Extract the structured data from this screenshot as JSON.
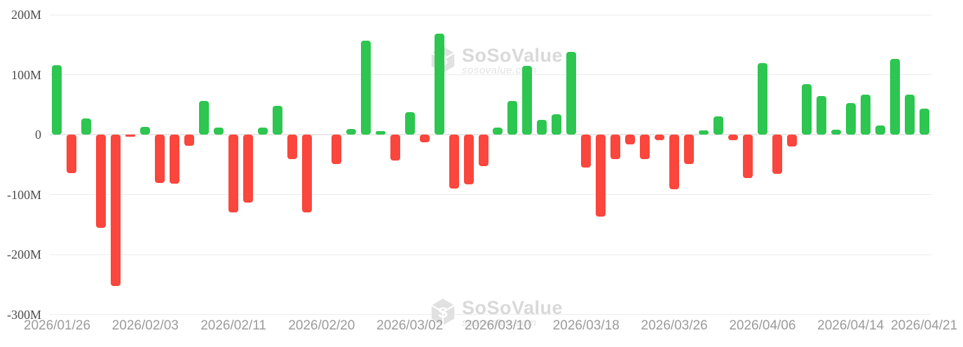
{
  "watermark": {
    "brand": "SoSoValue",
    "domain": "sosovalue.com"
  },
  "colors": {
    "positive": "#2dc650",
    "negative": "#fa463c",
    "grid": "#ededed",
    "zero_line": "#e8e8e8",
    "y_label": "#4d4d4d",
    "x_label": "#9b9b9b",
    "watermark_text": "#d9d9d9",
    "watermark_sub": "#e3e3e3",
    "background": "#ffffff"
  },
  "chart_data": {
    "type": "bar",
    "title": "",
    "xlabel": "",
    "ylabel": "",
    "unit": "M",
    "grid": true,
    "legend": "none",
    "ylim": [
      -300,
      200
    ],
    "y_ticks": [
      "200M",
      "100M",
      "0",
      "-100M",
      "-200M",
      "-300M"
    ],
    "y_tick_values": [
      200,
      100,
      0,
      -100,
      -200,
      -300
    ],
    "x": [
      "2026/01/26",
      "2026/01/27",
      "2026/01/28",
      "2026/01/29",
      "2026/01/30",
      "2026/02/02",
      "2026/02/03",
      "2026/02/04",
      "2026/02/05",
      "2026/02/06",
      "2026/02/09",
      "2026/02/10",
      "2026/02/11",
      "2026/02/12",
      "2026/02/13",
      "2026/02/17",
      "2026/02/18",
      "2026/02/19",
      "2026/02/20",
      "2026/02/23",
      "2026/02/24",
      "2026/02/25",
      "2026/02/26",
      "2026/02/27",
      "2026/03/02",
      "2026/03/03",
      "2026/03/04",
      "2026/03/05",
      "2026/03/06",
      "2026/03/09",
      "2026/03/10",
      "2026/03/11",
      "2026/03/12",
      "2026/03/13",
      "2026/03/16",
      "2026/03/17",
      "2026/03/18",
      "2026/03/19",
      "2026/03/20",
      "2026/03/23",
      "2026/03/24",
      "2026/03/25",
      "2026/03/26",
      "2026/03/27",
      "2026/03/30",
      "2026/03/31",
      "2026/04/01",
      "2026/04/02",
      "2026/04/06",
      "2026/04/07",
      "2026/04/08",
      "2026/04/09",
      "2026/04/10",
      "2026/04/13",
      "2026/04/14",
      "2026/04/15",
      "2026/04/16",
      "2026/04/17",
      "2026/04/20",
      "2026/04/21"
    ],
    "values": [
      116,
      -64,
      27,
      -155,
      -252,
      -3,
      13,
      -80,
      -81,
      -18,
      56,
      12,
      -130,
      -113,
      12,
      48,
      -41,
      -130,
      0,
      -49,
      10,
      157,
      6,
      -43,
      38,
      -12,
      169,
      -90,
      -83,
      -52,
      12,
      56,
      115,
      25,
      34,
      138,
      -55,
      -136,
      -41,
      -16,
      -41,
      -9,
      -91,
      -49,
      7,
      31,
      -9,
      -72,
      120,
      -65,
      -19,
      85,
      65,
      9,
      53,
      67,
      16,
      127,
      67,
      44
    ],
    "x_tick_labels": [
      "2026/01/26",
      "2026/02/03",
      "2026/02/11",
      "2026/02/20",
      "2026/03/02",
      "2026/03/10",
      "2026/03/18",
      "2026/03/26",
      "2026/04/06",
      "2026/04/14",
      "2026/04/21"
    ],
    "x_tick_indices": [
      0,
      6,
      12,
      18,
      24,
      30,
      36,
      42,
      48,
      54,
      59
    ],
    "color_rule": "green if value >= 0 else red"
  }
}
